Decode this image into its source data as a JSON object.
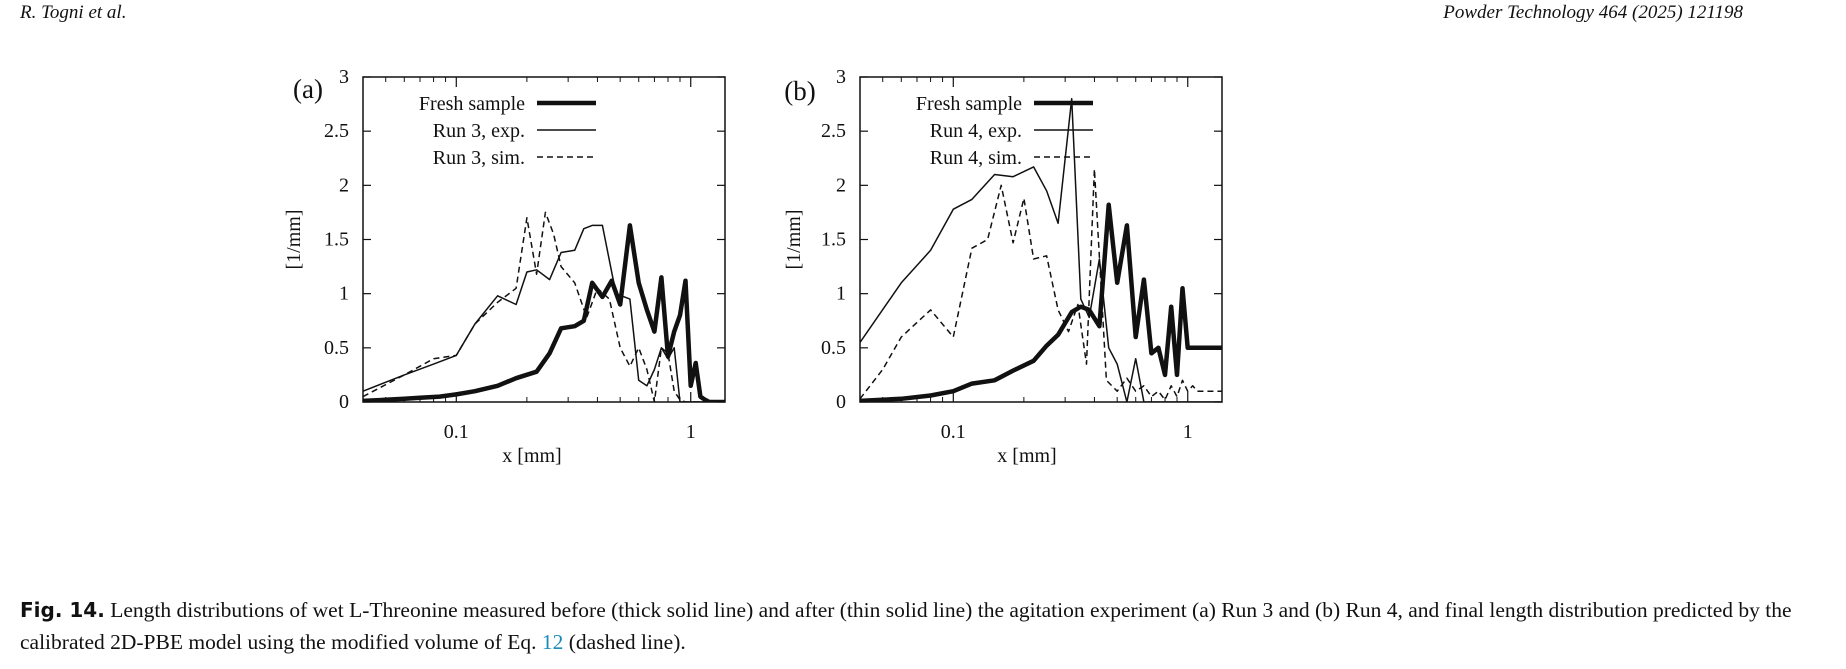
{
  "header": {
    "left": "R. Togni et al.",
    "right": "Powder Technology 464 (2025) 121198"
  },
  "figure": {
    "panels": [
      {
        "label": "(a)",
        "ylabel": "[1/mm]",
        "xlabel": "x [mm]",
        "xticks": [
          "0.1",
          "1"
        ],
        "yticks": [
          "0",
          "0.5",
          "1",
          "1.5",
          "2",
          "2.5",
          "3"
        ],
        "legend": [
          "Fresh sample",
          "Run 3, exp.",
          "Run 3, sim."
        ]
      },
      {
        "label": "(b)",
        "ylabel": "[1/mm]",
        "xlabel": "x [mm]",
        "xticks": [
          "0.1",
          "1"
        ],
        "yticks": [
          "0",
          "0.5",
          "1",
          "1.5",
          "2",
          "2.5",
          "3"
        ],
        "legend": [
          "Fresh sample",
          "Run 4, exp.",
          "Run 4, sim."
        ]
      }
    ]
  },
  "caption": {
    "label": "Fig. 14.",
    "text_before": "Length distributions of wet L-Threonine measured before (thick solid line) and after (thin solid line) the agitation experiment (a) Run 3 and (b) Run 4, and final length distribution predicted by the calibrated 2D-PBE model using the modified volume of Eq.",
    "ref": "12",
    "text_after": "(dashed line)."
  },
  "chart_data": [
    {
      "type": "line",
      "title": "(a)",
      "xlabel": "x [mm]",
      "ylabel": "[1/mm]",
      "xscale": "log",
      "xlim": [
        0.04,
        1.4
      ],
      "ylim": [
        0,
        3
      ],
      "legend_position": "top-left",
      "series": [
        {
          "name": "Fresh sample",
          "style": "thick-solid",
          "x": [
            0.04,
            0.05,
            0.06,
            0.07,
            0.085,
            0.1,
            0.12,
            0.15,
            0.18,
            0.22,
            0.25,
            0.28,
            0.32,
            0.35,
            0.38,
            0.42,
            0.46,
            0.5,
            0.55,
            0.6,
            0.65,
            0.7,
            0.75,
            0.8,
            0.85,
            0.9,
            0.95,
            1.0,
            1.05,
            1.1,
            1.15,
            1.2,
            1.25,
            1.3,
            1.35,
            1.4
          ],
          "y": [
            0.01,
            0.02,
            0.03,
            0.04,
            0.05,
            0.07,
            0.1,
            0.15,
            0.22,
            0.28,
            0.45,
            0.68,
            0.7,
            0.75,
            1.1,
            0.97,
            1.12,
            0.9,
            1.63,
            1.1,
            0.85,
            0.65,
            1.15,
            0.42,
            0.65,
            0.8,
            1.12,
            0.15,
            0.36,
            0.05,
            0.02,
            0.0,
            0.0,
            0.0,
            0.0,
            0.0
          ]
        },
        {
          "name": "Run 3, exp.",
          "style": "thin-solid",
          "x": [
            0.04,
            0.06,
            0.08,
            0.1,
            0.12,
            0.15,
            0.18,
            0.2,
            0.22,
            0.25,
            0.28,
            0.32,
            0.35,
            0.38,
            0.42,
            0.48,
            0.55,
            0.6,
            0.65,
            0.7,
            0.75,
            0.8,
            0.85,
            0.9,
            0.95,
            1.0,
            1.05,
            1.1,
            1.15,
            1.2,
            1.3,
            1.4
          ],
          "y": [
            0.1,
            0.25,
            0.35,
            0.43,
            0.72,
            0.98,
            0.9,
            1.2,
            1.22,
            1.13,
            1.38,
            1.4,
            1.6,
            1.63,
            1.63,
            1.0,
            0.95,
            0.2,
            0.15,
            0.3,
            0.5,
            0.4,
            0.5,
            0.0,
            0.0,
            0.0,
            0.0,
            0.0,
            0.0,
            0.0,
            0.0,
            0.0
          ]
        },
        {
          "name": "Run 3, sim.",
          "style": "dashed",
          "x": [
            0.04,
            0.06,
            0.08,
            0.1,
            0.12,
            0.15,
            0.18,
            0.2,
            0.22,
            0.24,
            0.26,
            0.28,
            0.32,
            0.36,
            0.4,
            0.45,
            0.5,
            0.55,
            0.6,
            0.65,
            0.7,
            0.75,
            0.8,
            0.85,
            0.9,
            0.95,
            1.0,
            1.05,
            1.1,
            1.2,
            1.3,
            1.4
          ],
          "y": [
            0.05,
            0.25,
            0.4,
            0.43,
            0.72,
            0.92,
            1.05,
            1.7,
            1.18,
            1.75,
            1.55,
            1.25,
            1.1,
            0.78,
            1.05,
            0.95,
            0.5,
            0.33,
            0.5,
            0.3,
            0.0,
            0.5,
            0.45,
            0.1,
            0.02,
            0.0,
            0.0,
            0.0,
            0.0,
            0.0,
            0.0,
            0.0
          ]
        }
      ]
    },
    {
      "type": "line",
      "title": "(b)",
      "xlabel": "x [mm]",
      "ylabel": "[1/mm]",
      "xscale": "log",
      "xlim": [
        0.04,
        1.4
      ],
      "ylim": [
        0,
        3
      ],
      "legend_position": "top-left",
      "series": [
        {
          "name": "Fresh sample",
          "style": "thick-solid",
          "x": [
            0.04,
            0.06,
            0.08,
            0.1,
            0.12,
            0.15,
            0.18,
            0.22,
            0.25,
            0.28,
            0.32,
            0.35,
            0.38,
            0.42,
            0.46,
            0.5,
            0.55,
            0.6,
            0.65,
            0.7,
            0.75,
            0.8,
            0.85,
            0.9,
            0.95,
            1.0,
            1.05,
            1.1,
            1.15,
            1.2,
            1.25,
            1.3,
            1.35,
            1.4
          ],
          "y": [
            0.01,
            0.03,
            0.06,
            0.1,
            0.17,
            0.2,
            0.29,
            0.38,
            0.52,
            0.62,
            0.83,
            0.88,
            0.85,
            0.7,
            1.82,
            1.1,
            1.63,
            0.6,
            1.13,
            0.45,
            0.5,
            0.25,
            0.88,
            0.25,
            1.05,
            0.5,
            0.5,
            0.5,
            0.5,
            0.5,
            0.5,
            0.5,
            0.5,
            0.5
          ]
        },
        {
          "name": "Run 4, exp.",
          "style": "thin-solid",
          "x": [
            0.04,
            0.06,
            0.08,
            0.1,
            0.12,
            0.15,
            0.18,
            0.22,
            0.25,
            0.28,
            0.32,
            0.35,
            0.38,
            0.42,
            0.46,
            0.5,
            0.55,
            0.6,
            0.65,
            0.7,
            0.8,
            0.9,
            1.0,
            1.1,
            1.2,
            1.3,
            1.4
          ],
          "y": [
            0.55,
            1.1,
            1.4,
            1.78,
            1.87,
            2.1,
            2.08,
            2.17,
            1.95,
            1.65,
            2.8,
            0.95,
            0.78,
            1.32,
            0.5,
            0.35,
            0.0,
            0.4,
            0.0,
            0.0,
            0.0,
            0.0,
            0.0,
            0.0,
            0.0,
            0.0,
            0.0
          ]
        },
        {
          "name": "Run 4, sim.",
          "style": "dashed",
          "x": [
            0.04,
            0.05,
            0.06,
            0.08,
            0.1,
            0.12,
            0.14,
            0.16,
            0.18,
            0.2,
            0.22,
            0.25,
            0.28,
            0.31,
            0.34,
            0.37,
            0.4,
            0.45,
            0.5,
            0.55,
            0.6,
            0.65,
            0.7,
            0.75,
            0.8,
            0.85,
            0.9,
            0.95,
            1.0,
            1.05,
            1.1,
            1.15,
            1.2,
            1.25,
            1.3,
            1.35,
            1.4
          ],
          "y": [
            0.03,
            0.3,
            0.6,
            0.85,
            0.6,
            1.42,
            1.5,
            2.0,
            1.47,
            1.88,
            1.32,
            1.35,
            0.85,
            0.65,
            0.9,
            0.35,
            2.15,
            0.2,
            0.1,
            0.22,
            0.1,
            0.15,
            0.05,
            0.1,
            0.02,
            0.15,
            0.05,
            0.2,
            0.1,
            0.15,
            0.1,
            0.1,
            0.1,
            0.1,
            0.1,
            0.1,
            0.1
          ]
        }
      ]
    }
  ]
}
